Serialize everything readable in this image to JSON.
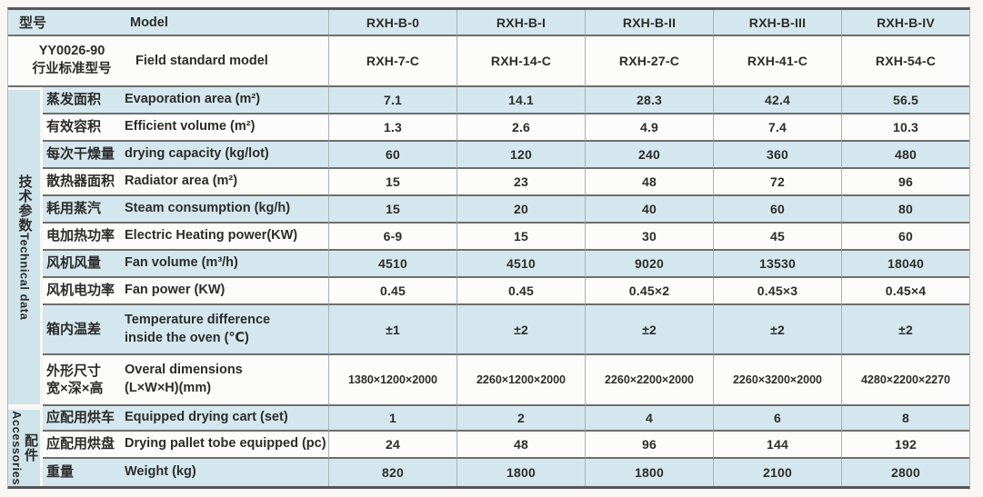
{
  "colors": {
    "row_blue": "#d5e7ee",
    "row_white": "#fcfcfa",
    "strip_blue": "#cfe3ea",
    "border_dark": "#6e6e6e",
    "border_light": "#a9b2b6",
    "page_background": "#f8f7f3"
  },
  "table": {
    "header": {
      "model_row": {
        "cn": "型号",
        "en": "Model",
        "values": [
          "RXH-B-0",
          "RXH-B-I",
          "RXH-B-II",
          "RXH-B-III",
          "RXH-B-IV"
        ]
      },
      "standard_row": {
        "cn": "YY0026-90\n行业标准型号",
        "en": "Field standard model",
        "values": [
          "RXH-7-C",
          "RXH-14-C",
          "RXH-27-C",
          "RXH-41-C",
          "RXH-54-C"
        ]
      }
    },
    "sections": [
      {
        "id": "technical-data",
        "label_cn": "技术参数",
        "label_en": "Technical data",
        "rows": [
          {
            "cn": "蒸发面积",
            "en": "Evaporation area (m²)",
            "values": [
              "7.1",
              "14.1",
              "28.3",
              "42.4",
              "56.5"
            ]
          },
          {
            "cn": "有效容积",
            "en": "Efficient volume (m²)",
            "values": [
              "1.3",
              "2.6",
              "4.9",
              "7.4",
              "10.3"
            ]
          },
          {
            "cn": "每次干燥量",
            "en": "drying capacity (kg/lot)",
            "values": [
              "60",
              "120",
              "240",
              "360",
              "480"
            ]
          },
          {
            "cn": "散热器面积",
            "en": "Radiator area (m²)",
            "values": [
              "15",
              "23",
              "48",
              "72",
              "96"
            ]
          },
          {
            "cn": "耗用蒸汽",
            "en": "Steam consumption (kg/h)",
            "values": [
              "15",
              "20",
              "40",
              "60",
              "80"
            ]
          },
          {
            "cn": "电加热功率",
            "en": "Electric Heating power(KW)",
            "values": [
              "6-9",
              "15",
              "30",
              "45",
              "60"
            ]
          },
          {
            "cn": "风机风量",
            "en": "Fan volume (m³/h)",
            "values": [
              "4510",
              "4510",
              "9020",
              "13530",
              "18040"
            ]
          },
          {
            "cn": "风机电功率",
            "en": "Fan power (KW)",
            "values": [
              "0.45",
              "0.45",
              "0.45×2",
              "0.45×3",
              "0.45×4"
            ]
          },
          {
            "cn": "箱内温差",
            "en": "Temperature difference\ninside the oven (℃)",
            "values": [
              "±1",
              "±2",
              "±2",
              "±2",
              "±2"
            ]
          },
          {
            "cn": "外形尺寸\n宽×深×高",
            "en": "Overal dimensions\n(L×W×H)(mm)",
            "values": [
              "1380×1200×2000",
              "2260×1200×2000",
              "2260×2200×2000",
              "2260×3200×2000",
              "4280×2200×2270"
            ]
          }
        ]
      },
      {
        "id": "accessories",
        "label_cn": "配件",
        "label_en": "Accessories",
        "rows": [
          {
            "cn": "应配用烘车",
            "en": "Equipped drying cart (set)",
            "values": [
              "1",
              "2",
              "4",
              "6",
              "8"
            ]
          },
          {
            "cn": "应配用烘盘",
            "en": "Drying pallet tobe equipped (pc)",
            "values": [
              "24",
              "48",
              "96",
              "144",
              "192"
            ]
          },
          {
            "cn": "重量",
            "en": "Weight (kg)",
            "values": [
              "820",
              "1800",
              "1800",
              "2100",
              "2800"
            ]
          }
        ]
      }
    ]
  }
}
